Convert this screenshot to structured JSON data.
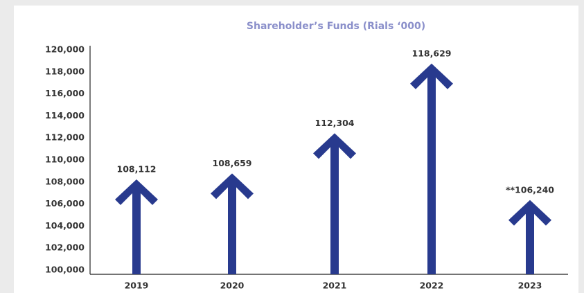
{
  "chart_data": {
    "type": "arrow-bar",
    "title": "Shareholder’s Funds (Rials ‘000)",
    "categories": [
      "2019",
      "2020",
      "2021",
      "2022",
      "2023"
    ],
    "values": [
      108112,
      108659,
      112304,
      118629,
      106240
    ],
    "value_labels": [
      "108,112",
      "108,659",
      "112,304",
      "118,629",
      "**106,240"
    ],
    "color": "#283a8e",
    "ylim": [
      100000,
      120000
    ],
    "yticks": [
      {
        "value": 100000,
        "label": "100,000"
      },
      {
        "value": 102000,
        "label": "102,000"
      },
      {
        "value": 104000,
        "label": "104,000"
      },
      {
        "value": 106000,
        "label": "106,000"
      },
      {
        "value": 108000,
        "label": "108,000"
      },
      {
        "value": 110000,
        "label": "110,000"
      },
      {
        "value": 112000,
        "label": "112,000"
      },
      {
        "value": 114000,
        "label": "114,000"
      },
      {
        "value": 116000,
        "label": "116,000"
      },
      {
        "value": 118000,
        "label": "118,000"
      },
      {
        "value": 120000,
        "label": "120,000"
      }
    ],
    "grid": false
  }
}
